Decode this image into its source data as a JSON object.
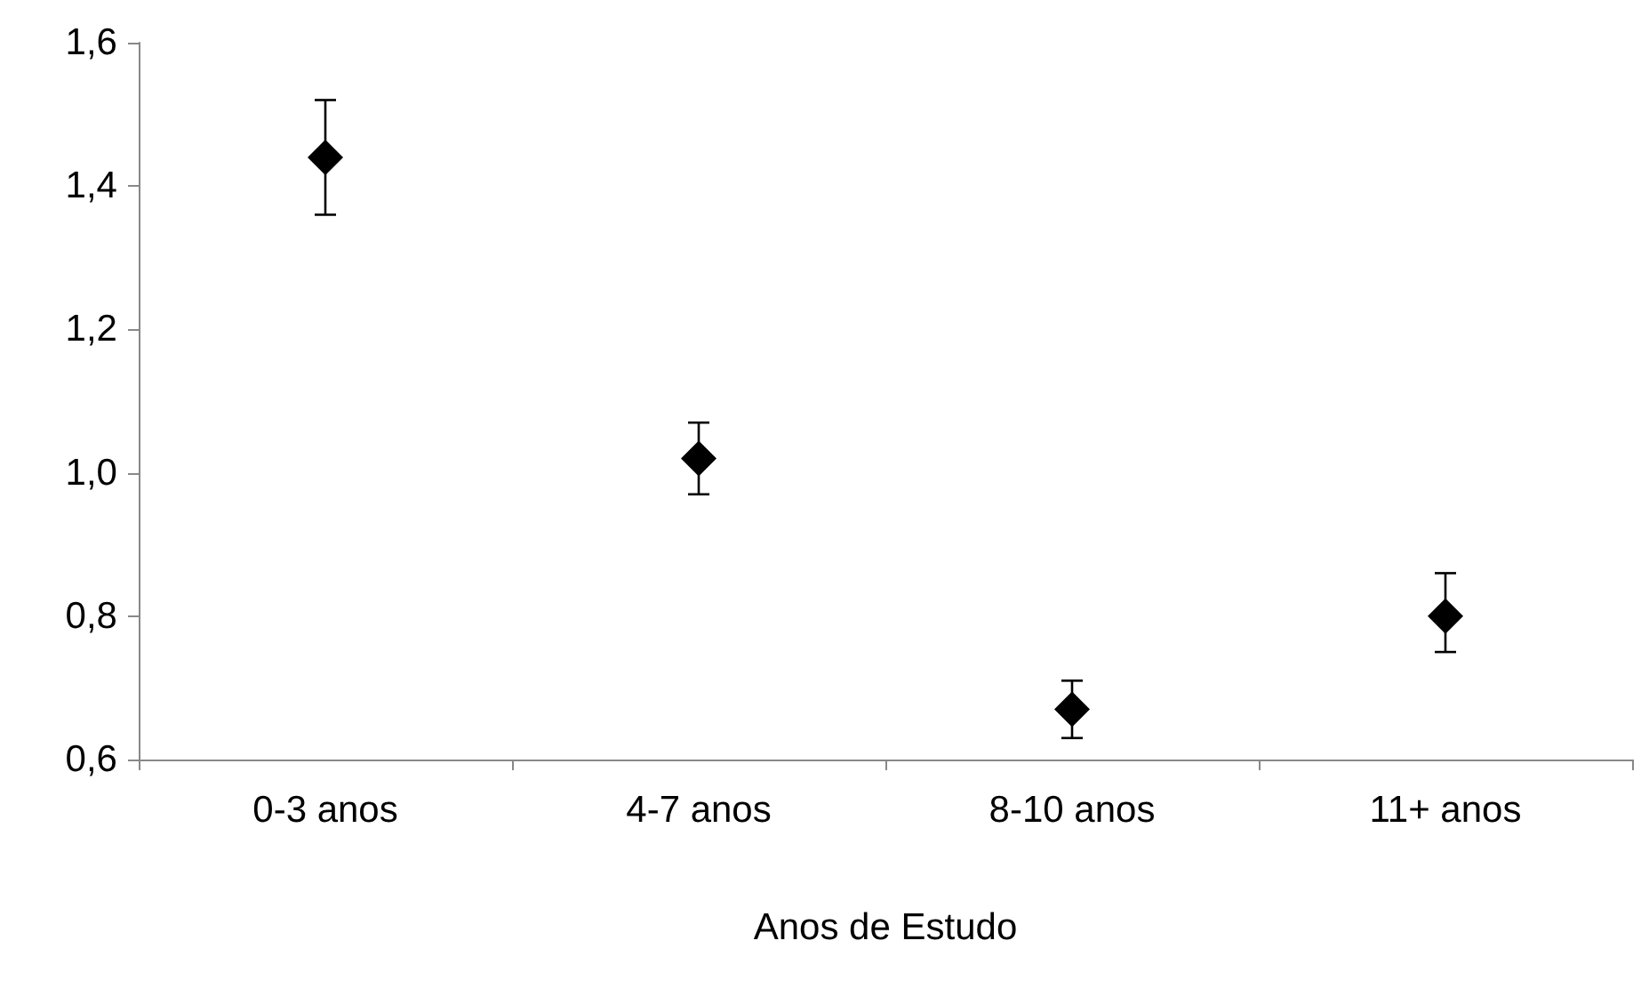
{
  "chart_data": {
    "type": "scatter",
    "xlabel": "Anos de Estudo",
    "categories": [
      "0-3 anos",
      "4-7 anos",
      "8-10 anos",
      "11+ anos"
    ],
    "series": [
      {
        "color": "#000000",
        "values": [
          1.44,
          1.02,
          0.67,
          0.8
        ],
        "errors": [
          [
            1.36,
            1.52
          ],
          [
            0.97,
            1.07
          ],
          [
            0.63,
            0.71
          ],
          [
            0.75,
            0.86
          ]
        ]
      }
    ],
    "ylim": [
      0.6,
      1.6
    ],
    "yticks": [
      {
        "value": 0.6,
        "label": "0,6"
      },
      {
        "value": 0.8,
        "label": "0,8"
      },
      {
        "value": 1.0,
        "label": "1,0"
      },
      {
        "value": 1.2,
        "label": "1,2"
      },
      {
        "value": 1.4,
        "label": "1,4"
      },
      {
        "value": 1.6,
        "label": "1,6"
      }
    ],
    "grid": false,
    "marker": "diamond"
  }
}
